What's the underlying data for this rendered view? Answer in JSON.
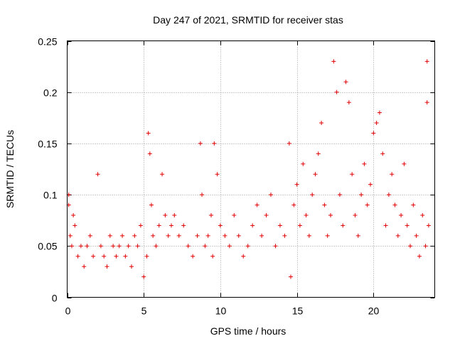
{
  "chart_data": {
    "type": "scatter",
    "title": "Day 247 of 2021, SRMTID for receiver stas",
    "xlabel": "GPS time / hours",
    "ylabel": "SRMTID / TECUs",
    "xlim": [
      0,
      24
    ],
    "ylim": [
      0,
      0.25
    ],
    "xticks": [
      0,
      5,
      10,
      15,
      20
    ],
    "xtick_labels": [
      "0",
      "5",
      "10",
      "15",
      "20"
    ],
    "yticks": [
      0,
      0.05,
      0.1,
      0.15,
      0.2,
      0.25
    ],
    "ytick_labels": [
      "0",
      "0.05",
      "0.1",
      "0.15",
      "0.2",
      "0.25"
    ],
    "grid": true,
    "marker": "+",
    "series": [
      {
        "name": "stas",
        "color": "#e00000",
        "x": [
          0.1,
          0.1,
          0.2,
          0.3,
          0.4,
          0.5,
          0.7,
          0.9,
          1.1,
          1.3,
          1.5,
          1.7,
          2.0,
          2.2,
          2.4,
          2.6,
          2.8,
          3.0,
          3.2,
          3.4,
          3.6,
          3.8,
          4.0,
          4.2,
          4.4,
          4.6,
          4.8,
          5.0,
          5.2,
          5.3,
          5.4,
          5.5,
          5.6,
          5.8,
          6.0,
          6.2,
          6.4,
          6.6,
          6.8,
          7.0,
          7.3,
          7.6,
          7.9,
          8.2,
          8.5,
          8.7,
          8.8,
          9.0,
          9.2,
          9.4,
          9.5,
          9.6,
          9.8,
          10.0,
          10.3,
          10.6,
          10.9,
          11.2,
          11.5,
          11.8,
          12.1,
          12.4,
          12.7,
          13.0,
          13.3,
          13.6,
          13.9,
          14.2,
          14.5,
          14.6,
          14.8,
          15.0,
          15.2,
          15.4,
          15.6,
          15.8,
          16.0,
          16.2,
          16.4,
          16.6,
          16.8,
          17.0,
          17.2,
          17.4,
          17.6,
          17.8,
          18.0,
          18.2,
          18.4,
          18.6,
          18.8,
          19.0,
          19.2,
          19.4,
          19.6,
          19.8,
          20.0,
          20.2,
          20.4,
          20.6,
          20.8,
          21.0,
          21.2,
          21.4,
          21.6,
          21.8,
          22.0,
          22.2,
          22.4,
          22.6,
          22.8,
          23.0,
          23.2,
          23.4,
          23.5,
          23.5,
          23.6
        ],
        "y": [
          0.09,
          0.1,
          0.06,
          0.05,
          0.08,
          0.07,
          0.04,
          0.05,
          0.03,
          0.05,
          0.06,
          0.04,
          0.12,
          0.05,
          0.04,
          0.03,
          0.06,
          0.05,
          0.04,
          0.05,
          0.06,
          0.04,
          0.05,
          0.03,
          0.06,
          0.05,
          0.07,
          0.02,
          0.04,
          0.16,
          0.14,
          0.09,
          0.06,
          0.05,
          0.07,
          0.12,
          0.08,
          0.06,
          0.07,
          0.08,
          0.06,
          0.07,
          0.05,
          0.04,
          0.06,
          0.15,
          0.1,
          0.05,
          0.06,
          0.08,
          0.04,
          0.15,
          0.12,
          0.07,
          0.06,
          0.05,
          0.08,
          0.06,
          0.04,
          0.05,
          0.07,
          0.09,
          0.06,
          0.08,
          0.1,
          0.05,
          0.07,
          0.06,
          0.15,
          0.02,
          0.09,
          0.11,
          0.07,
          0.13,
          0.08,
          0.06,
          0.1,
          0.12,
          0.14,
          0.17,
          0.09,
          0.06,
          0.08,
          0.23,
          0.2,
          0.1,
          0.07,
          0.21,
          0.19,
          0.12,
          0.08,
          0.06,
          0.1,
          0.13,
          0.09,
          0.11,
          0.16,
          0.17,
          0.18,
          0.14,
          0.07,
          0.1,
          0.12,
          0.09,
          0.06,
          0.08,
          0.13,
          0.07,
          0.05,
          0.09,
          0.06,
          0.04,
          0.08,
          0.05,
          0.23,
          0.19,
          0.07
        ]
      }
    ]
  }
}
